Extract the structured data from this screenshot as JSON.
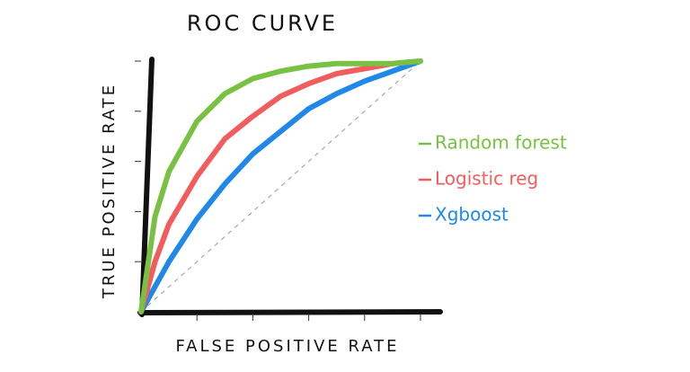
{
  "chart_data": {
    "type": "line",
    "title": "ROC CURVE",
    "x_label": "FALSE POSITIVE RATE",
    "y_label": "TRUE POSITIVE RATE",
    "x": [
      0,
      0.05,
      0.1,
      0.2,
      0.3,
      0.4,
      0.5,
      0.6,
      0.7,
      0.8,
      0.9,
      1
    ],
    "series": [
      {
        "name": "Random forest",
        "color": "#79c142",
        "values": [
          0,
          0.38,
          0.56,
          0.76,
          0.87,
          0.93,
          0.96,
          0.98,
          0.99,
          0.99,
          0.99,
          1
        ]
      },
      {
        "name": "Logistic reg",
        "color": "#f25c5c",
        "values": [
          0,
          0.2,
          0.35,
          0.54,
          0.69,
          0.78,
          0.86,
          0.91,
          0.95,
          0.97,
          0.99,
          1
        ]
      },
      {
        "name": "Xgboost",
        "color": "#1f88e8",
        "values": [
          0,
          0.1,
          0.2,
          0.37,
          0.51,
          0.63,
          0.72,
          0.81,
          0.87,
          0.92,
          0.96,
          1
        ]
      }
    ],
    "xlim": [
      0,
      1
    ],
    "ylim": [
      0,
      1
    ],
    "xticks": [
      0.2,
      0.4,
      0.6,
      0.8,
      1
    ],
    "yticks": [
      0.2,
      0.4,
      0.6,
      0.8,
      1
    ],
    "legend": "right"
  }
}
